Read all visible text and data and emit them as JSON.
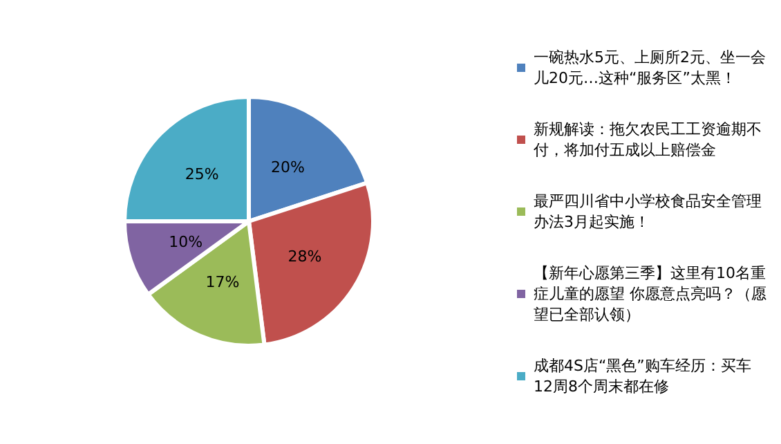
{
  "chart_data": {
    "type": "pie",
    "categories": [
      "一碗热水5元、上厕所2元、坐一会儿20元…这种“服务区”太黑！",
      "新规解读：拖欠农民工工资逾期不付，将加付五成以上赔偿金",
      "最严四川省中小学校食品安全管理办法3月起实施！",
      "【新年心愿第三季】这里有10名重症儿童的愿望 你愿意点亮吗？（愿望已全部认领）",
      "成都4S店“黑色”购车经历：买车12周8个周末都在修"
    ],
    "values": [
      20,
      28,
      17,
      10,
      25
    ],
    "colors": [
      "#4f81bd",
      "#c0504d",
      "#9bbb59",
      "#8064a2",
      "#4bacc6"
    ],
    "value_labels": [
      "20%",
      "28%",
      "17%",
      "10%",
      "25%"
    ],
    "legend": "right"
  }
}
